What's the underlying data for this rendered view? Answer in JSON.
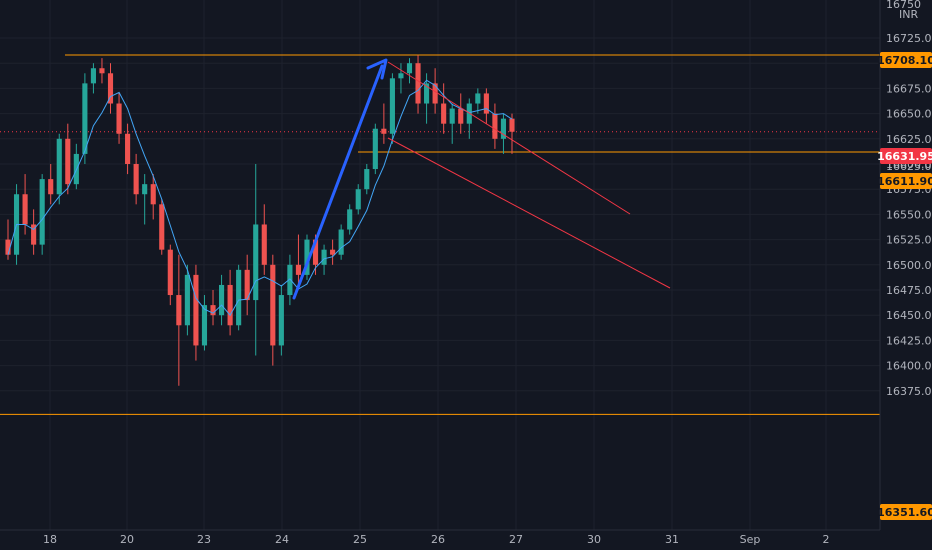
{
  "chart_data": {
    "type": "candlestick",
    "currency": "INR",
    "ylim": [
      16340,
      16755
    ],
    "y_ticks": [
      "16725.00",
      "16700.00",
      "16675.00",
      "16650.00",
      "16625.00",
      "16600.00",
      "16575.00",
      "16550.00",
      "16525.00",
      "16500.00",
      "16475.00",
      "16450.00",
      "16425.00",
      "16400.00",
      "16375.00"
    ],
    "x_ticks": [
      "18",
      "20",
      "23",
      "24",
      "25",
      "26",
      "27",
      "30",
      "31",
      "Sep",
      "2"
    ],
    "price_tags": [
      {
        "name": "resistance-high",
        "value": "16708.10",
        "color": "#ff9800"
      },
      {
        "name": "current-price",
        "value": "16631.95",
        "color": "#f23645"
      },
      {
        "name": "support-level",
        "value": "16611.90",
        "color": "#ff9800"
      },
      {
        "name": "support-low",
        "value": "16351.60",
        "color": "#ff9800"
      }
    ],
    "hidden_tick_labels": [
      "16750",
      "16625.00"
    ],
    "colors": {
      "up": "#26a69a",
      "down": "#ef5350",
      "ma": "#42a5f5",
      "level": "#ff9800",
      "trend_arrow": "#2962ff",
      "channel": "#f23645",
      "grid": "#1e222d"
    },
    "grid": true,
    "candles_approx": [
      [
        16525,
        16545,
        16505,
        16510
      ],
      [
        16510,
        16580,
        16500,
        16570
      ],
      [
        16570,
        16590,
        16530,
        16540
      ],
      [
        16540,
        16555,
        16510,
        16520
      ],
      [
        16520,
        16590,
        16510,
        16585
      ],
      [
        16585,
        16600,
        16560,
        16570
      ],
      [
        16570,
        16630,
        16560,
        16625
      ],
      [
        16625,
        16640,
        16570,
        16580
      ],
      [
        16580,
        16620,
        16575,
        16610
      ],
      [
        16610,
        16690,
        16600,
        16680
      ],
      [
        16680,
        16700,
        16670,
        16695
      ],
      [
        16695,
        16705,
        16680,
        16690
      ],
      [
        16690,
        16700,
        16650,
        16660
      ],
      [
        16660,
        16670,
        16620,
        16630
      ],
      [
        16630,
        16640,
        16590,
        16600
      ],
      [
        16600,
        16610,
        16560,
        16570
      ],
      [
        16570,
        16590,
        16540,
        16580
      ],
      [
        16580,
        16590,
        16545,
        16560
      ],
      [
        16560,
        16565,
        16510,
        16515
      ],
      [
        16515,
        16520,
        16460,
        16470
      ],
      [
        16470,
        16510,
        16380,
        16440
      ],
      [
        16440,
        16500,
        16430,
        16490
      ],
      [
        16490,
        16500,
        16405,
        16420
      ],
      [
        16420,
        16470,
        16415,
        16460
      ],
      [
        16460,
        16475,
        16440,
        16450
      ],
      [
        16450,
        16490,
        16440,
        16480
      ],
      [
        16480,
        16495,
        16430,
        16440
      ],
      [
        16440,
        16500,
        16435,
        16495
      ],
      [
        16495,
        16510,
        16450,
        16465
      ],
      [
        16465,
        16600,
        16410,
        16540
      ],
      [
        16540,
        16560,
        16490,
        16500
      ],
      [
        16500,
        16510,
        16400,
        16420
      ],
      [
        16420,
        16480,
        16410,
        16470
      ],
      [
        16470,
        16510,
        16460,
        16500
      ],
      [
        16500,
        16530,
        16480,
        16490
      ],
      [
        16490,
        16530,
        16485,
        16525
      ],
      [
        16525,
        16530,
        16490,
        16500
      ],
      [
        16500,
        16520,
        16490,
        16515
      ],
      [
        16515,
        16525,
        16500,
        16510
      ],
      [
        16510,
        16540,
        16505,
        16535
      ],
      [
        16535,
        16560,
        16530,
        16555
      ],
      [
        16555,
        16580,
        16550,
        16575
      ],
      [
        16575,
        16600,
        16570,
        16595
      ],
      [
        16595,
        16640,
        16590,
        16635
      ],
      [
        16635,
        16660,
        16620,
        16630
      ],
      [
        16630,
        16690,
        16620,
        16685
      ],
      [
        16685,
        16700,
        16670,
        16690
      ],
      [
        16690,
        16705,
        16680,
        16700
      ],
      [
        16700,
        16708,
        16650,
        16660
      ],
      [
        16660,
        16690,
        16640,
        16680
      ],
      [
        16680,
        16695,
        16650,
        16660
      ],
      [
        16660,
        16680,
        16630,
        16640
      ],
      [
        16640,
        16660,
        16620,
        16655
      ],
      [
        16655,
        16670,
        16630,
        16640
      ],
      [
        16640,
        16665,
        16625,
        16660
      ],
      [
        16660,
        16675,
        16650,
        16670
      ],
      [
        16670,
        16675,
        16640,
        16650
      ],
      [
        16650,
        16660,
        16615,
        16625
      ],
      [
        16625,
        16650,
        16610,
        16645
      ],
      [
        16645,
        16650,
        16610,
        16632
      ]
    ]
  }
}
